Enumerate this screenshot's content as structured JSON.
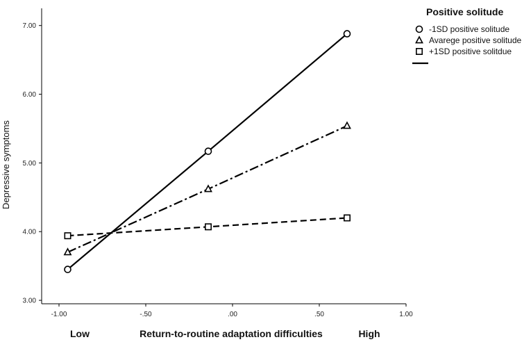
{
  "chart_data": {
    "type": "line",
    "xlabel": "Return-to-routine adaptation difficulties",
    "ylabel": "Depressive symptoms",
    "x_end_labels": {
      "low": "Low",
      "high": "High"
    },
    "xlim": [
      -1.1,
      1.0
    ],
    "ylim": [
      2.95,
      7.25
    ],
    "x_ticks": [
      -1.0,
      -0.5,
      0.0,
      0.5,
      1.0
    ],
    "x_tick_labels": [
      "-1.00",
      "-.50",
      ".00",
      ".50",
      "1.00"
    ],
    "y_ticks": [
      3,
      4,
      5,
      6,
      7
    ],
    "y_tick_labels": [
      "3.00",
      "4.00",
      "5.00",
      "6.00",
      "7.00"
    ],
    "x": [
      -0.95,
      -0.14,
      0.66
    ],
    "series": [
      {
        "name": "-1SD positive solitude",
        "values": [
          3.45,
          5.17,
          6.88
        ],
        "marker": "circle",
        "dash": "solid"
      },
      {
        "name": "Avarege positive solitude",
        "values": [
          3.7,
          4.62,
          5.54
        ],
        "marker": "triangle",
        "dash": "dashdot"
      },
      {
        "name": "+1SD positive solitdue",
        "values": [
          3.94,
          4.07,
          4.2
        ],
        "marker": "square",
        "dash": "dashed"
      }
    ],
    "legend": {
      "title": "Positive solitude",
      "placement": "top-right",
      "extra_line_entry": true
    },
    "grid": false,
    "colors": {
      "line": "#000000",
      "axis": "#000000"
    }
  }
}
